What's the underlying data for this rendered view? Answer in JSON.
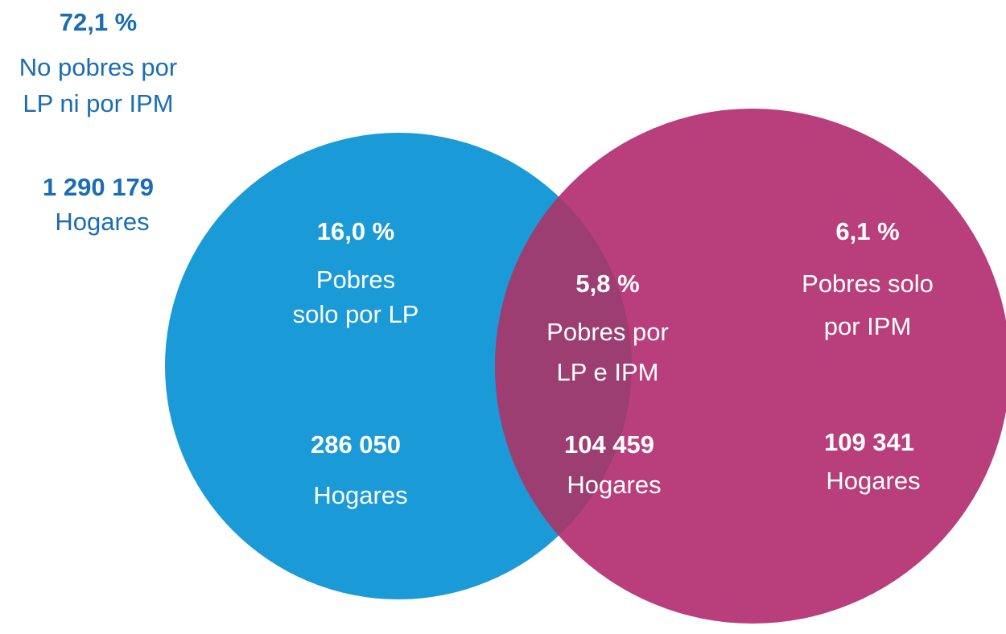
{
  "regions": [
    {
      "percent": "72,1 %",
      "label": [
        "No pobres por",
        "LP ni por IPM"
      ],
      "count": "1 290 179",
      "unit": "Hogares"
    },
    {
      "percent": "16,0 %",
      "label": [
        "Pobres",
        "solo por LP"
      ],
      "count": "286 050",
      "unit": "Hogares"
    },
    {
      "percent": "5,8 %",
      "label": [
        "Pobres por",
        "LP e IPM"
      ],
      "count": "104 459",
      "unit": "Hogares"
    },
    {
      "percent": "6,1 %",
      "label": [
        "Pobres solo",
        "por IPM"
      ],
      "count": "109 341",
      "unit": "Hogares"
    }
  ]
}
